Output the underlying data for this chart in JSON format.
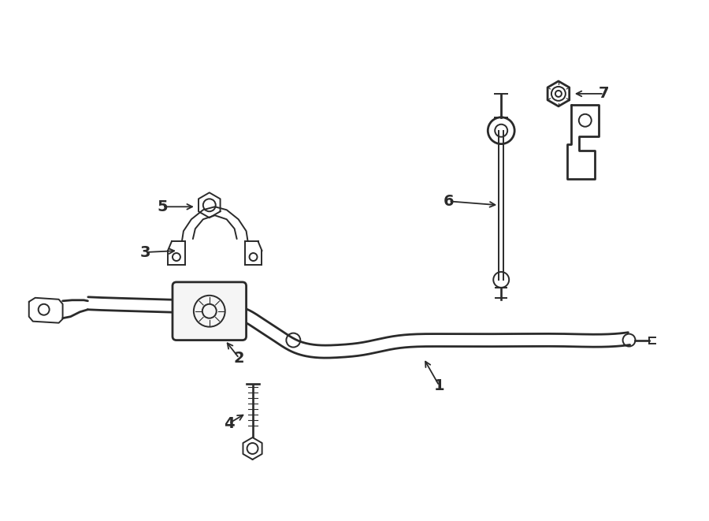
{
  "bg_color": "#ffffff",
  "line_color": "#2a2a2a",
  "lw": 1.4,
  "lw_thick": 2.0,
  "fig_width": 9.0,
  "fig_height": 6.61,
  "dpi": 100
}
